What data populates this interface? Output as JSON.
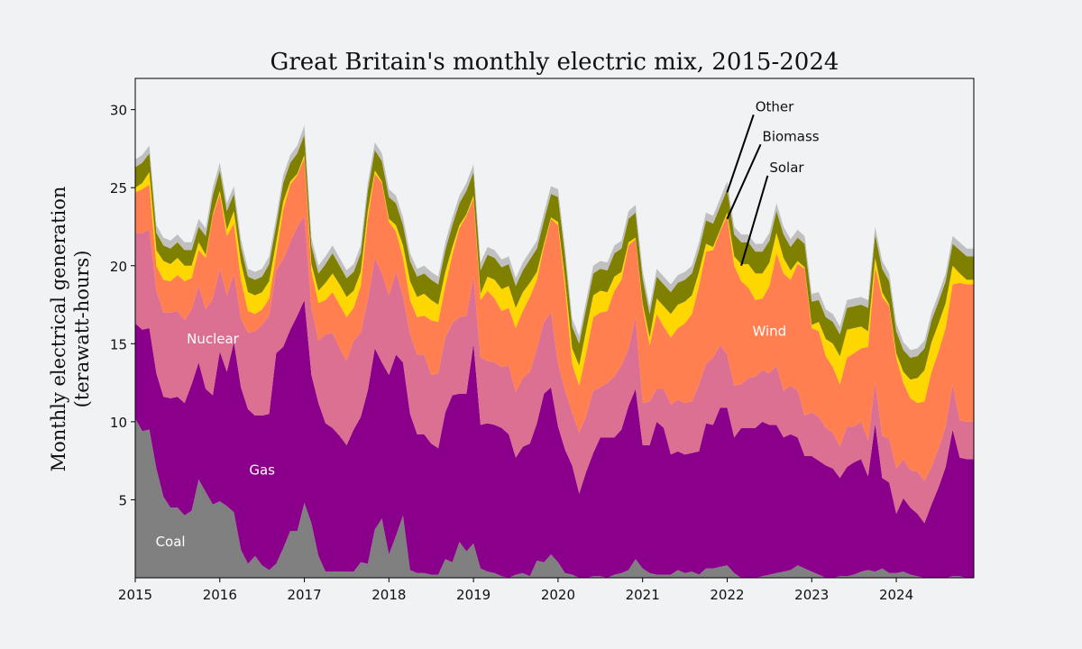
{
  "chart_data": {
    "type": "area",
    "title": "Great Britain's monthly electric mix, 2015-2024",
    "ylabel_line1": "Monthly electrical generation",
    "ylabel_line2": "(terawatt-hours)",
    "xlim": [
      "2015-01",
      "2024-12"
    ],
    "ylim": [
      0,
      32
    ],
    "x_ticks": [
      "2015",
      "2016",
      "2017",
      "2018",
      "2019",
      "2020",
      "2021",
      "2022",
      "2023",
      "2024"
    ],
    "y_ticks": [
      5,
      10,
      15,
      20,
      25,
      30
    ],
    "grid": false,
    "stack_order": [
      "Coal",
      "Gas",
      "Nuclear",
      "Wind",
      "Solar",
      "Biomass",
      "Other"
    ],
    "colors": {
      "Coal": "#808080",
      "Gas": "#8b008b",
      "Nuclear": "#db7093",
      "Wind": "#ff7f50",
      "Solar": "#ffd700",
      "Biomass": "#808000",
      "Other": "#c0c0c0"
    },
    "inline_labels": [
      {
        "series": "Coal",
        "text": "Coal",
        "x": "2015-06",
        "y": 2.3
      },
      {
        "series": "Gas",
        "text": "Gas",
        "x": "2016-07",
        "y": 6.9
      },
      {
        "series": "Nuclear",
        "text": "Nuclear",
        "x": "2015-12",
        "y": 15.3
      },
      {
        "series": "Wind",
        "text": "Wind",
        "x": "2022-07",
        "y": 15.8
      }
    ],
    "callouts": [
      {
        "series": "Other",
        "text": "Other",
        "x": "2022-05",
        "y": 29.9,
        "point_x": "2022-01",
        "point_y": 24.7
      },
      {
        "series": "Biomass",
        "text": "Biomass",
        "x": "2022-06",
        "y": 28.0,
        "point_x": "2022-01",
        "point_y": 23.0
      },
      {
        "series": "Solar",
        "text": "Solar",
        "x": "2022-07",
        "y": 26.0,
        "point_x": "2022-03",
        "point_y": 20.0
      }
    ],
    "start_year": 2015,
    "series": [
      {
        "name": "Coal",
        "values": [
          10.2,
          9.4,
          9.5,
          7.0,
          5.2,
          4.5,
          4.5,
          4.0,
          4.3,
          6.3,
          5.5,
          4.7,
          4.9,
          4.6,
          4.2,
          1.8,
          0.9,
          1.4,
          0.8,
          0.5,
          0.9,
          1.9,
          3.0,
          3.0,
          4.8,
          3.5,
          1.4,
          0.4,
          0.4,
          0.4,
          0.4,
          0.4,
          1.0,
          0.9,
          3.1,
          3.8,
          1.5,
          2.7,
          4.0,
          0.5,
          0.3,
          0.3,
          0.2,
          0.2,
          1.2,
          1.0,
          2.3,
          1.7,
          2.2,
          0.6,
          0.4,
          0.3,
          0.1,
          0.0,
          0.2,
          0.3,
          0.1,
          1.1,
          1.0,
          1.5,
          1.0,
          0.3,
          0.2,
          0.0,
          0.0,
          0.1,
          0.1,
          0.0,
          0.2,
          0.3,
          0.5,
          1.2,
          0.6,
          0.3,
          0.2,
          0.2,
          0.2,
          0.5,
          0.3,
          0.4,
          0.2,
          0.6,
          0.6,
          0.7,
          0.8,
          0.3,
          0.0,
          0.0,
          0.0,
          0.1,
          0.2,
          0.3,
          0.4,
          0.5,
          0.8,
          0.6,
          0.4,
          0.2,
          0.0,
          0.0,
          0.1,
          0.1,
          0.2,
          0.4,
          0.5,
          0.4,
          0.6,
          0.3,
          0.3,
          0.4,
          0.2,
          0.1,
          0.0,
          0.0,
          0.0,
          0.0,
          0.1,
          0.1,
          0.0,
          0.0
        ]
      },
      {
        "name": "Gas",
        "values": [
          6.1,
          6.5,
          6.5,
          6.1,
          6.4,
          7.0,
          7.1,
          7.2,
          8.1,
          7.5,
          6.6,
          7.0,
          9.6,
          8.6,
          10.9,
          10.4,
          9.9,
          9.0,
          9.6,
          10.0,
          13.5,
          12.9,
          12.9,
          13.8,
          13.0,
          9.5,
          9.8,
          9.5,
          9.2,
          8.7,
          8.1,
          9.1,
          9.3,
          11.1,
          11.6,
          10.0,
          11.5,
          11.6,
          9.8,
          10.0,
          8.9,
          8.9,
          8.4,
          8.1,
          9.4,
          10.7,
          9.5,
          10.1,
          12.8,
          9.2,
          9.5,
          9.5,
          9.5,
          9.2,
          7.5,
          8.1,
          8.5,
          8.8,
          10.8,
          10.7,
          8.7,
          7.9,
          7.0,
          5.4,
          6.8,
          7.9,
          8.9,
          9.0,
          8.8,
          9.2,
          10.5,
          10.9,
          7.9,
          8.2,
          9.8,
          9.4,
          7.7,
          7.6,
          7.6,
          7.6,
          7.9,
          9.3,
          9.2,
          10.2,
          10.1,
          8.7,
          9.6,
          9.6,
          9.6,
          9.9,
          9.6,
          9.5,
          8.6,
          8.7,
          8.2,
          7.2,
          7.4,
          7.3,
          7.2,
          7.0,
          6.3,
          7.0,
          7.2,
          7.2,
          6.0,
          9.5,
          5.8,
          5.8,
          3.8,
          4.7,
          4.3,
          4.0,
          3.5,
          4.7,
          5.8,
          7.1,
          9.4,
          7.6,
          7.6,
          7.6
        ]
      },
      {
        "name": "Nuclear",
        "values": [
          5.8,
          6.2,
          6.3,
          5.3,
          5.4,
          5.5,
          5.5,
          5.3,
          4.8,
          4.9,
          5.1,
          6.2,
          5.3,
          4.9,
          4.4,
          4.4,
          4.9,
          5.4,
          5.8,
          6.3,
          5.3,
          5.6,
          5.6,
          5.7,
          5.4,
          4.3,
          4.0,
          5.7,
          6.1,
          5.6,
          5.4,
          5.7,
          5.4,
          5.8,
          5.8,
          5.7,
          5.1,
          5.3,
          4.2,
          5.1,
          5.1,
          5.1,
          4.4,
          4.8,
          4.8,
          4.6,
          4.9,
          5.0,
          4.3,
          4.3,
          4.0,
          4.0,
          3.9,
          4.4,
          4.2,
          4.4,
          4.6,
          4.8,
          4.6,
          4.8,
          4.0,
          3.8,
          3.4,
          3.9,
          3.6,
          4.0,
          3.2,
          3.5,
          3.9,
          4.1,
          3.7,
          4.6,
          2.7,
          2.8,
          2.1,
          2.5,
          3.2,
          3.3,
          3.3,
          3.3,
          4.3,
          3.8,
          4.3,
          4.0,
          3.4,
          3.3,
          2.8,
          3.2,
          3.3,
          3.3,
          3.3,
          3.8,
          3.0,
          3.1,
          3.0,
          2.6,
          2.8,
          2.8,
          2.4,
          2.3,
          2.0,
          2.6,
          2.3,
          2.4,
          2.3,
          2.7,
          2.7,
          2.8,
          2.9,
          2.5,
          2.4,
          2.7,
          2.7,
          2.4,
          2.5,
          2.6,
          2.9,
          2.4,
          2.4,
          2.4
        ]
      },
      {
        "name": "Wind",
        "values": [
          2.6,
          2.8,
          2.9,
          1.6,
          2.1,
          2.0,
          2.3,
          2.5,
          2.0,
          2.3,
          3.3,
          5.3,
          4.8,
          3.8,
          3.2,
          2.5,
          1.4,
          1.1,
          1.0,
          1.1,
          1.0,
          3.2,
          3.7,
          3.3,
          3.7,
          2.4,
          2.4,
          2.2,
          2.6,
          2.8,
          2.8,
          2.1,
          3.0,
          5.2,
          5.4,
          5.8,
          4.7,
          2.6,
          2.5,
          2.2,
          2.4,
          2.5,
          3.5,
          3.3,
          3.3,
          4.4,
          5.7,
          6.4,
          5.0,
          3.7,
          4.5,
          4.1,
          3.6,
          3.7,
          4.1,
          4.3,
          4.8,
          4.4,
          4.8,
          6.0,
          8.9,
          6.6,
          3.1,
          3.0,
          4.0,
          4.7,
          4.8,
          4.6,
          5.5,
          5.5,
          6.6,
          5.0,
          6.2,
          3.6,
          4.8,
          4.0,
          4.3,
          4.6,
          5.1,
          5.6,
          6.3,
          7.2,
          6.9,
          7.3,
          8.9,
          7.7,
          6.6,
          5.8,
          4.9,
          4.6,
          5.6,
          7.2,
          7.5,
          6.8,
          8.1,
          9.4,
          5.4,
          5.5,
          4.6,
          4.2,
          4.0,
          4.4,
          4.7,
          4.7,
          6.0,
          7.3,
          8.9,
          8.5,
          7.1,
          4.9,
          4.6,
          4.4,
          5.1,
          6.1,
          6.2,
          6.3,
          6.4,
          8.8,
          8.8,
          8.8
        ]
      },
      {
        "name": "Solar",
        "values": [
          0.3,
          0.4,
          0.8,
          1.0,
          1.2,
          1.1,
          1.1,
          1.0,
          0.8,
          0.5,
          0.2,
          0.1,
          0.2,
          0.4,
          0.8,
          1.1,
          1.2,
          1.2,
          1.1,
          1.1,
          0.8,
          0.5,
          0.2,
          0.1,
          0.2,
          0.4,
          0.8,
          1.1,
          1.2,
          1.3,
          1.3,
          1.1,
          0.9,
          0.5,
          0.2,
          0.1,
          0.2,
          0.4,
          0.8,
          1.2,
          1.3,
          1.4,
          1.3,
          1.1,
          0.9,
          0.5,
          0.2,
          0.1,
          0.2,
          0.4,
          0.9,
          1.2,
          1.4,
          1.4,
          1.3,
          1.2,
          0.9,
          0.5,
          0.2,
          0.1,
          0.2,
          0.5,
          1.0,
          1.3,
          1.5,
          1.4,
          1.4,
          1.2,
          0.9,
          0.5,
          0.2,
          0.1,
          0.2,
          0.5,
          1.0,
          1.3,
          1.5,
          1.5,
          1.4,
          1.2,
          0.9,
          0.5,
          0.2,
          0.1,
          0.2,
          0.6,
          1.1,
          1.5,
          1.7,
          1.6,
          1.5,
          1.3,
          1.0,
          0.6,
          0.2,
          0.1,
          0.2,
          0.6,
          1.1,
          1.5,
          1.8,
          1.8,
          1.6,
          1.4,
          1.0,
          0.6,
          0.3,
          0.1,
          0.3,
          0.7,
          1.2,
          1.6,
          2.0,
          1.9,
          1.8,
          1.6,
          1.2,
          0.6,
          0.3,
          0.3
        ]
      },
      {
        "name": "Biomass",
        "values": [
          1.3,
          1.3,
          1.2,
          1.1,
          1.0,
          1.0,
          1.0,
          1.0,
          1.0,
          1.0,
          1.2,
          1.2,
          1.3,
          1.2,
          1.1,
          1.0,
          1.0,
          1.0,
          1.0,
          1.1,
          1.1,
          1.2,
          1.2,
          1.3,
          1.3,
          1.2,
          1.1,
          1.2,
          1.3,
          1.2,
          1.2,
          1.2,
          1.2,
          1.3,
          1.3,
          1.3,
          1.4,
          1.4,
          1.3,
          1.3,
          1.3,
          1.3,
          1.3,
          1.3,
          1.4,
          1.4,
          1.4,
          1.5,
          1.5,
          1.5,
          1.4,
          1.4,
          1.4,
          1.4,
          1.4,
          1.4,
          1.5,
          1.5,
          1.5,
          1.5,
          1.6,
          1.5,
          1.4,
          1.4,
          1.4,
          1.4,
          1.4,
          1.4,
          1.5,
          1.5,
          1.5,
          1.6,
          1.6,
          1.5,
          1.4,
          1.4,
          1.4,
          1.4,
          1.4,
          1.4,
          1.4,
          1.5,
          1.5,
          1.5,
          1.5,
          1.4,
          1.4,
          1.4,
          1.4,
          1.4,
          1.4,
          1.4,
          1.5,
          1.5,
          1.5,
          1.5,
          1.5,
          1.4,
          1.4,
          1.4,
          1.4,
          1.4,
          1.4,
          1.4,
          1.5,
          1.5,
          1.5,
          1.5,
          1.4,
          1.4,
          1.4,
          1.4,
          1.4,
          1.4,
          1.4,
          1.4,
          1.4,
          1.5,
          1.5,
          1.5
        ]
      },
      {
        "name": "Other",
        "values": [
          0.5,
          0.5,
          0.5,
          0.5,
          0.5,
          0.5,
          0.5,
          0.5,
          0.5,
          0.5,
          0.5,
          0.5,
          0.5,
          0.5,
          0.5,
          0.5,
          0.5,
          0.5,
          0.5,
          0.5,
          0.5,
          0.5,
          0.5,
          0.5,
          0.6,
          0.5,
          0.5,
          0.5,
          0.5,
          0.5,
          0.5,
          0.5,
          0.5,
          0.5,
          0.5,
          0.5,
          0.5,
          0.5,
          0.5,
          0.5,
          0.5,
          0.5,
          0.5,
          0.5,
          0.5,
          0.5,
          0.5,
          0.5,
          0.5,
          0.5,
          0.5,
          0.5,
          0.5,
          0.5,
          0.5,
          0.5,
          0.5,
          0.5,
          0.5,
          0.5,
          0.5,
          0.5,
          0.5,
          0.5,
          0.5,
          0.5,
          0.5,
          0.5,
          0.5,
          0.5,
          0.5,
          0.5,
          0.5,
          0.5,
          0.5,
          0.5,
          0.5,
          0.5,
          0.5,
          0.5,
          0.5,
          0.5,
          0.5,
          0.5,
          0.5,
          0.5,
          0.5,
          0.5,
          0.5,
          0.5,
          0.5,
          0.5,
          0.5,
          0.5,
          0.5,
          0.5,
          0.5,
          0.5,
          0.5,
          0.5,
          0.5,
          0.5,
          0.5,
          0.5,
          0.5,
          0.5,
          0.5,
          0.5,
          0.5,
          0.5,
          0.5,
          0.5,
          0.5,
          0.5,
          0.5,
          0.5,
          0.5,
          0.5,
          0.5,
          0.5
        ]
      }
    ]
  }
}
